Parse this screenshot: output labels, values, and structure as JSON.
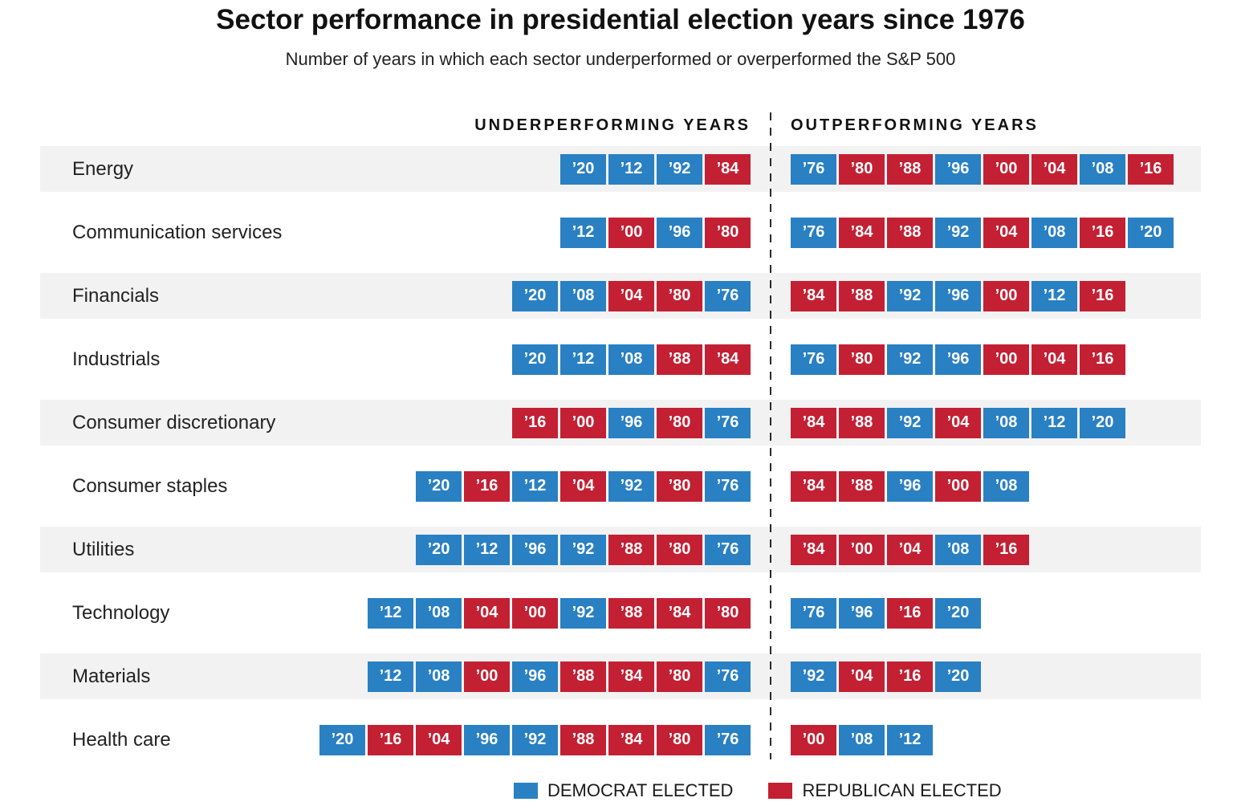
{
  "title": "Sector performance in presidential election years since 1976",
  "subtitle": "Number of years in which each sector underperformed or overperformed the S&P 500",
  "columns": {
    "under": "UNDERPERFORMING YEARS",
    "out": "OUTPERFORMING YEARS"
  },
  "legend": {
    "democrat": "DEMOCRAT ELECTED",
    "republican": "REPUBLICAN ELECTED"
  },
  "colors": {
    "democrat": "#2980c3",
    "republican": "#c32033",
    "stripe": "#f2f2f2",
    "divider": "#2b2b2b"
  },
  "chart_data": {
    "type": "table",
    "title": "Sector performance in presidential election years since 1976",
    "subtitle": "Number of years in which each sector underperformed or overperformed the S&P 500",
    "columns": [
      "UNDERPERFORMING YEARS",
      "OUTPERFORMING YEARS"
    ],
    "party_by_year": {
      "’76": "democrat",
      "’80": "republican",
      "’84": "republican",
      "’88": "republican",
      "’92": "democrat",
      "’96": "democrat",
      "’00": "republican",
      "’04": "republican",
      "’08": "democrat",
      "’12": "democrat",
      "’16": "republican",
      "’20": "democrat"
    },
    "rows": [
      {
        "sector": "Energy",
        "underperforming": [
          "’20",
          "’12",
          "’92",
          "’84"
        ],
        "outperforming": [
          "’76",
          "’80",
          "’88",
          "’96",
          "’00",
          "’04",
          "’08",
          "’16"
        ]
      },
      {
        "sector": "Communication services",
        "underperforming": [
          "’12",
          "’00",
          "’96",
          "’80"
        ],
        "outperforming": [
          "’76",
          "’84",
          "’88",
          "’92",
          "’04",
          "’08",
          "’16",
          "’20"
        ]
      },
      {
        "sector": "Financials",
        "underperforming": [
          "’20",
          "’08",
          "’04",
          "’80",
          "’76"
        ],
        "outperforming": [
          "’84",
          "’88",
          "’92",
          "’96",
          "’00",
          "’12",
          "’16"
        ]
      },
      {
        "sector": "Industrials",
        "underperforming": [
          "’20",
          "’12",
          "’08",
          "’88",
          "’84"
        ],
        "outperforming": [
          "’76",
          "’80",
          "’92",
          "’96",
          "’00",
          "’04",
          "’16"
        ]
      },
      {
        "sector": "Consumer discretionary",
        "underperforming": [
          "’16",
          "’00",
          "’96",
          "’80",
          "’76"
        ],
        "outperforming": [
          "’84",
          "’88",
          "’92",
          "’04",
          "’08",
          "’12",
          "’20"
        ]
      },
      {
        "sector": "Consumer staples",
        "underperforming": [
          "’20",
          "’16",
          "’12",
          "’04",
          "’92",
          "’80",
          "’76"
        ],
        "outperforming": [
          "’84",
          "’88",
          "’96",
          "’00",
          "’08"
        ]
      },
      {
        "sector": "Utilities",
        "underperforming": [
          "’20",
          "’12",
          "’96",
          "’92",
          "’88",
          "’80",
          "’76"
        ],
        "outperforming": [
          "’84",
          "’00",
          "’04",
          "’08",
          "’16"
        ]
      },
      {
        "sector": "Technology",
        "underperforming": [
          "’12",
          "’08",
          "’04",
          "’00",
          "’92",
          "’88",
          "’84",
          "’80"
        ],
        "outperforming": [
          "’76",
          "’96",
          "’16",
          "’20"
        ]
      },
      {
        "sector": "Materials",
        "underperforming": [
          "’12",
          "’08",
          "’00",
          "’96",
          "’88",
          "’84",
          "’80",
          "’76"
        ],
        "outperforming": [
          "’92",
          "’04",
          "’16",
          "’20"
        ]
      },
      {
        "sector": "Health care",
        "underperforming": [
          "’20",
          "’16",
          "’04",
          "’96",
          "’92",
          "’88",
          "’84",
          "’80",
          "’76"
        ],
        "outperforming": [
          "’00",
          "’08",
          "’12"
        ]
      }
    ],
    "legend": [
      {
        "label": "DEMOCRAT ELECTED",
        "color": "#2980c3"
      },
      {
        "label": "REPUBLICAN ELECTED",
        "color": "#c32033"
      }
    ]
  }
}
